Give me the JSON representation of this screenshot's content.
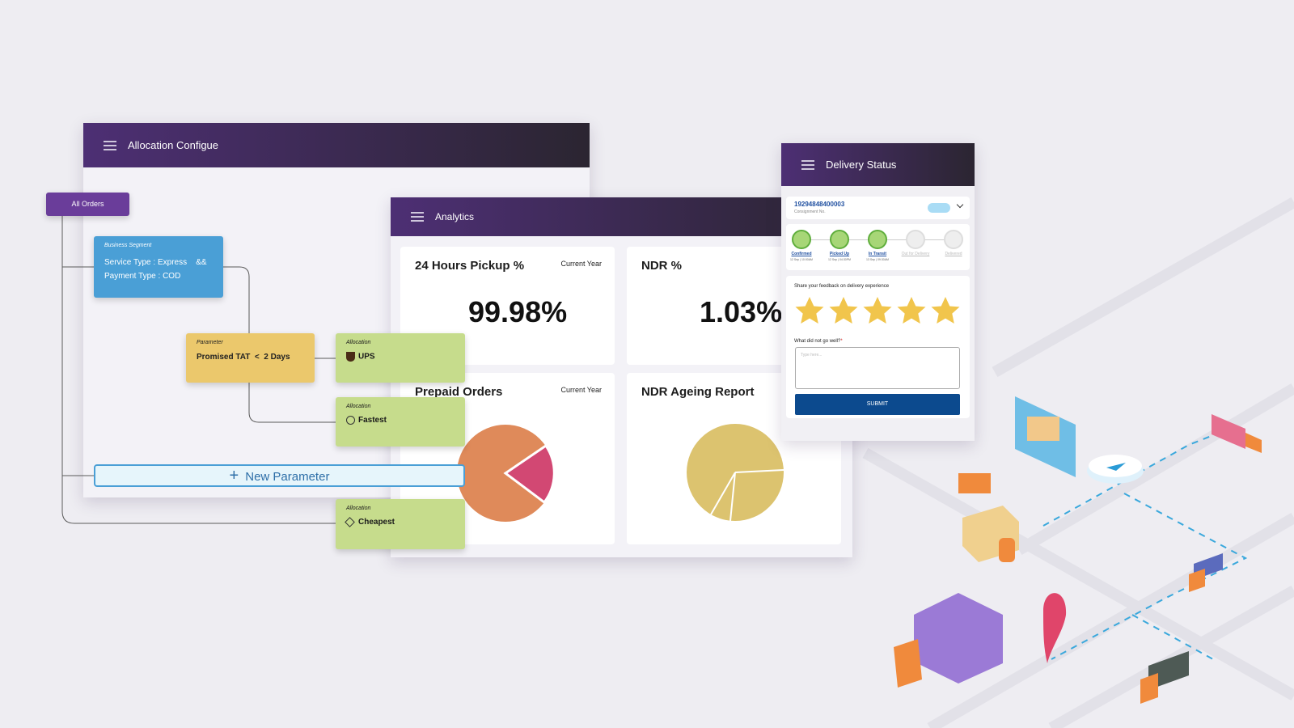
{
  "allocation_window": {
    "title": "Allocation Configue",
    "root": "All Orders",
    "segment": {
      "label": "Business Segment",
      "service_type": "Service Type : Express",
      "operator": "&&",
      "payment_type": "Payment Type : COD"
    },
    "parameter": {
      "label": "Parameter",
      "name": "Promised TAT",
      "operator": "<",
      "value": "2 Days"
    },
    "allocations": [
      {
        "label": "Allocation",
        "name": "UPS"
      },
      {
        "label": "Allocation",
        "name": "Fastest"
      },
      {
        "label": "Allocation",
        "name": "Cheapest"
      }
    ],
    "new_parameter": "New Parameter"
  },
  "analytics_window": {
    "title": "Analytics",
    "cards": [
      {
        "title": "24 Hours Pickup %",
        "period": "Current Year",
        "value": "99.98%"
      },
      {
        "title": "NDR %",
        "value": "1.03%"
      },
      {
        "title": "Prepaid Orders",
        "period": "Current Year"
      },
      {
        "title": "NDR Ageing Report"
      }
    ]
  },
  "delivery_window": {
    "title": "Delivery Status",
    "consignment_number": "19294848400003",
    "consignment_label": "Consignment No.",
    "steps": [
      {
        "label": "Confirmed",
        "time": "12 Sep | 10:00AM"
      },
      {
        "label": "Picked Up",
        "time": "12 Sep | 04:30PM"
      },
      {
        "label": "In Transit",
        "time": "13 Sep | 09:30AM"
      },
      {
        "label": "Out for Delivery"
      },
      {
        "label": "Delivered"
      }
    ],
    "feedback_prompt": "Share your feedback on delivery experience",
    "question": "What did not go well?",
    "required_mark": "*",
    "placeholder": "Type here...",
    "submit": "SUBMIT"
  }
}
